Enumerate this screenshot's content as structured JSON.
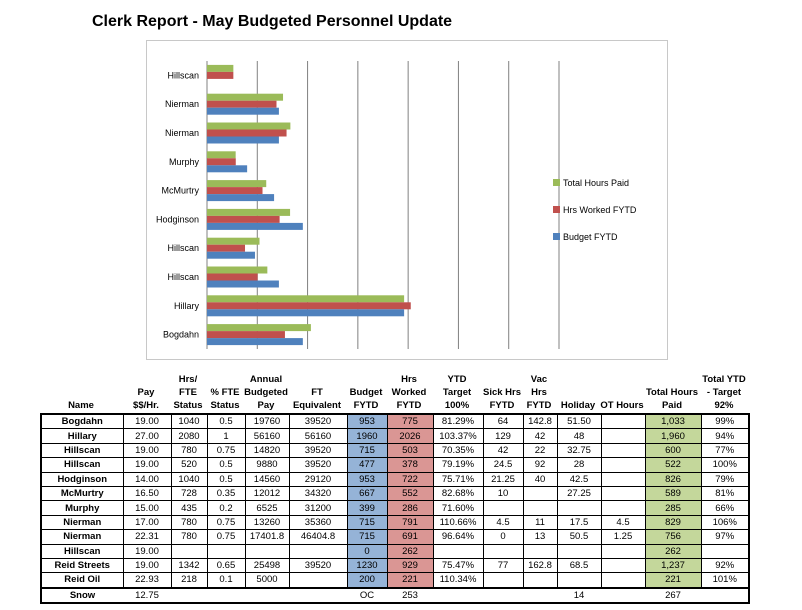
{
  "title": "Clerk Report - May Budgeted Personnel Update",
  "colors": {
    "total_hours_paid": "#9bbb59",
    "hrs_worked": "#c0504d",
    "budget": "#4f81bd",
    "cell_blue": "#95b3d7",
    "cell_red": "#da9694",
    "cell_green": "#c4d79b"
  },
  "chart_data": {
    "type": "bar",
    "orientation": "horizontal",
    "categories": [
      "Bogdahn",
      "Hillary",
      "Hillscan",
      "Hillscan",
      "Hodginson",
      "McMurtry",
      "Murphy",
      "Nierman",
      "Nierman",
      "Hillscan"
    ],
    "series": [
      {
        "name": "Total Hours Paid",
        "values": [
          1033,
          1960,
          600,
          522,
          826,
          589,
          285,
          829,
          756,
          262
        ]
      },
      {
        "name": "Hrs Worked FYTD",
        "values": [
          775,
          2026,
          503,
          378,
          722,
          552,
          286,
          791,
          691,
          262
        ]
      },
      {
        "name": "Budget FYTD",
        "values": [
          953,
          1960,
          715,
          477,
          953,
          667,
          399,
          715,
          715,
          0
        ]
      }
    ],
    "xlim": [
      0,
      3500
    ],
    "grid": true,
    "legend": "right"
  },
  "table": {
    "headers": [
      [
        "Name"
      ],
      [
        "Pay",
        "$$/Hr."
      ],
      [
        "Hrs/",
        "FTE",
        "Status"
      ],
      [
        "% FTE",
        "Status"
      ],
      [
        "Annual",
        "Budgeted",
        "Pay"
      ],
      [
        "FT",
        "Equivalent"
      ],
      [
        "Budget",
        "FYTD"
      ],
      [
        "Hrs",
        "Worked",
        "FYTD"
      ],
      [
        "YTD",
        "Target",
        "100%"
      ],
      [
        "Sick Hrs",
        "FYTD"
      ],
      [
        "Vac",
        "Hrs",
        "FYTD"
      ],
      [
        "Holiday"
      ],
      [
        "OT Hours"
      ],
      [
        "Total Hours",
        "Paid"
      ],
      [
        "Total YTD",
        "- Target",
        "92%"
      ]
    ],
    "rows": [
      [
        "Bogdahn",
        "19.00",
        "1040",
        "0.5",
        "19760",
        "39520",
        "953",
        "775",
        "81.29%",
        "64",
        "142.8",
        "51.50",
        "",
        "1,033",
        "99%"
      ],
      [
        "Hillary",
        "27.00",
        "2080",
        "1",
        "56160",
        "56160",
        "1960",
        "2026",
        "103.37%",
        "129",
        "42",
        "48",
        "",
        "1,960",
        "94%"
      ],
      [
        "Hillscan",
        "19.00",
        "780",
        "0.75",
        "14820",
        "39520",
        "715",
        "503",
        "70.35%",
        "42",
        "22",
        "32.75",
        "",
        "600",
        "77%"
      ],
      [
        "Hillscan",
        "19.00",
        "520",
        "0.5",
        "9880",
        "39520",
        "477",
        "378",
        "79.19%",
        "24.5",
        "92",
        "28",
        "",
        "522",
        "100%"
      ],
      [
        "Hodginson",
        "14.00",
        "1040",
        "0.5",
        "14560",
        "29120",
        "953",
        "722",
        "75.71%",
        "21.25",
        "40",
        "42.5",
        "",
        "826",
        "79%"
      ],
      [
        "McMurtry",
        "16.50",
        "728",
        "0.35",
        "12012",
        "34320",
        "667",
        "552",
        "82.68%",
        "10",
        "",
        "27.25",
        "",
        "589",
        "81%"
      ],
      [
        "Murphy",
        "15.00",
        "435",
        "0.2",
        "6525",
        "31200",
        "399",
        "286",
        "71.60%",
        "",
        "",
        "",
        "",
        "285",
        "66%"
      ],
      [
        "Nierman",
        "17.00",
        "780",
        "0.75",
        "13260",
        "35360",
        "715",
        "791",
        "110.66%",
        "4.5",
        "11",
        "17.5",
        "4.5",
        "829",
        "106%"
      ],
      [
        "Nierman",
        "22.31",
        "780",
        "0.75",
        "17401.8",
        "46404.8",
        "715",
        "691",
        "96.64%",
        "0",
        "13",
        "50.5",
        "1.25",
        "756",
        "97%"
      ],
      [
        "Hillscan",
        "19.00",
        "",
        "",
        "",
        "",
        "0",
        "262",
        "",
        "",
        "",
        "",
        "",
        "262",
        ""
      ],
      [
        "Reid Streets",
        "19.00",
        "1342",
        "0.65",
        "25498",
        "39520",
        "1230",
        "929",
        "75.47%",
        "77",
        "162.8",
        "68.5",
        "",
        "1,237",
        "92%"
      ],
      [
        "Reid Oil",
        "22.93",
        "218",
        "0.1",
        "5000",
        "",
        "200",
        "221",
        "110.34%",
        "",
        "",
        "",
        "",
        "221",
        "101%"
      ]
    ],
    "footer": [
      "Snow",
      "12.75",
      "",
      "",
      "",
      "",
      "OC",
      "253",
      "",
      "",
      "",
      "14",
      "",
      "267",
      ""
    ]
  }
}
